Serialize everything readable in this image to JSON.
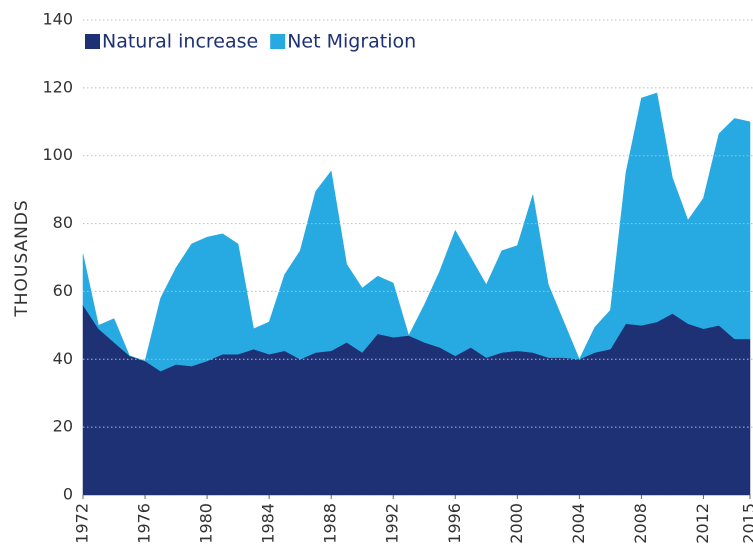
{
  "chart_data": {
    "type": "stacked_area",
    "y_label": "THOUSANDS",
    "x": [
      1972,
      1973,
      1974,
      1975,
      1976,
      1977,
      1978,
      1979,
      1980,
      1981,
      1982,
      1983,
      1984,
      1985,
      1986,
      1987,
      1988,
      1989,
      1990,
      1991,
      1992,
      1993,
      1994,
      1995,
      1996,
      1997,
      1998,
      1999,
      2000,
      2001,
      2002,
      2003,
      2004,
      2005,
      2006,
      2007,
      2008,
      2009,
      2010,
      2011,
      2012,
      2013,
      2014,
      2015
    ],
    "series": [
      {
        "name": "Natural increase",
        "color": "#1f3175",
        "values": [
          56,
          49,
          45,
          41,
          39.5,
          36.5,
          38.5,
          38,
          39.5,
          41.5,
          41.5,
          43,
          41.5,
          42.5,
          40,
          42,
          42.5,
          45,
          42,
          47.5,
          46.5,
          47,
          45,
          43.5,
          41,
          43.5,
          40.5,
          42,
          42.5,
          42,
          40.5,
          40.5,
          40,
          42,
          43,
          50.5,
          50,
          51,
          53.5,
          50.5,
          49,
          50,
          46,
          46
        ]
      },
      {
        "name": "Net Migration",
        "color": "#27aae1",
        "values": [
          15,
          1,
          7,
          0,
          0,
          21.5,
          28.5,
          36,
          36.5,
          35.5,
          32.5,
          6,
          9.5,
          22.5,
          32,
          47.5,
          53,
          23,
          19,
          17,
          16,
          0,
          11,
          22.5,
          37,
          26.5,
          21.5,
          30,
          31,
          46.5,
          21.5,
          10.5,
          0,
          7.5,
          11.5,
          44.5,
          67,
          67.5,
          40,
          30.5,
          38.5,
          56.5,
          65,
          64
        ]
      }
    ],
    "xlim": [
      1972,
      2015
    ],
    "xticks": [
      1972,
      1976,
      1980,
      1984,
      1988,
      1992,
      1996,
      2000,
      2004,
      2008,
      2012,
      2015
    ],
    "ylim": [
      0,
      140
    ],
    "yticks": [
      0,
      20,
      40,
      60,
      80,
      100,
      120,
      140
    ],
    "grid": true,
    "legend": "top-left"
  }
}
